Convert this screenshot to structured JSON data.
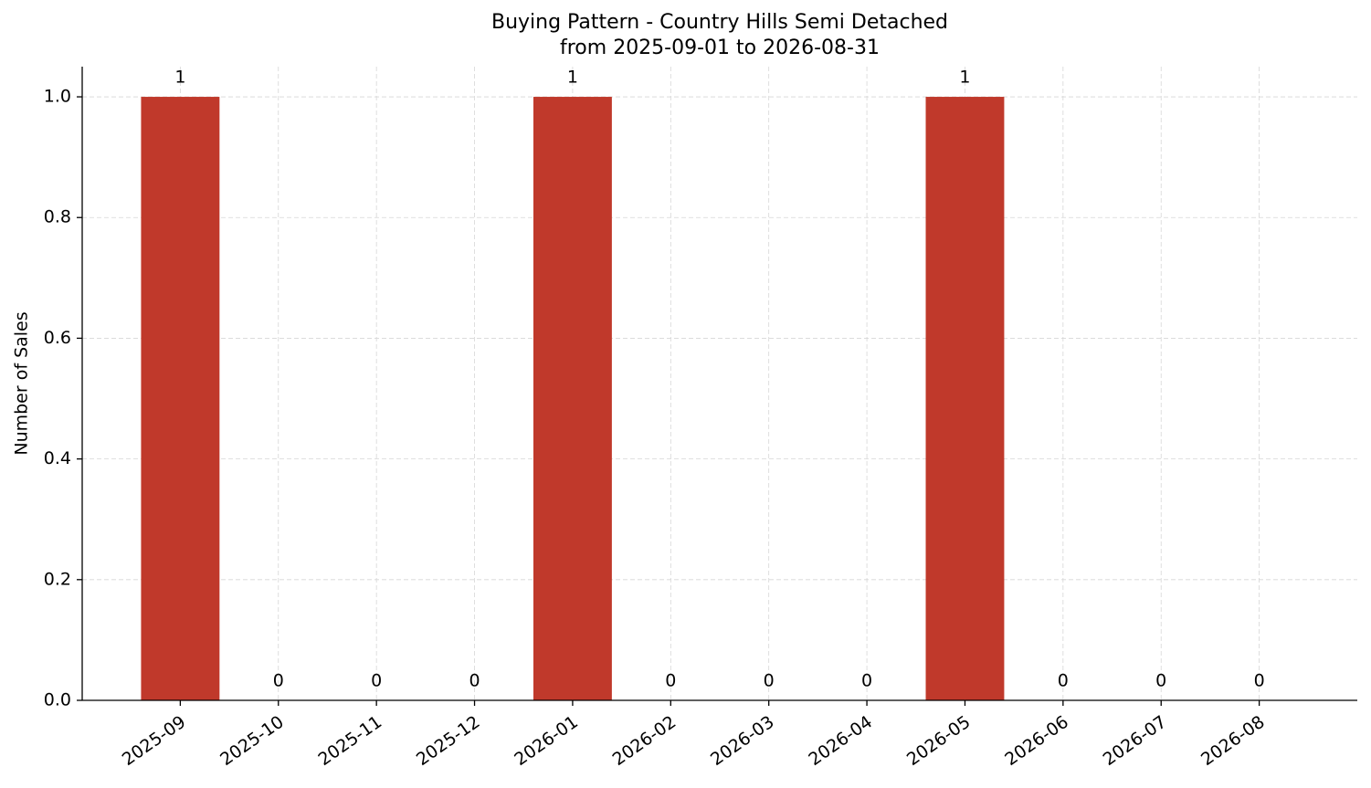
{
  "chart_data": {
    "type": "bar",
    "title": "Buying Pattern - Country Hills Semi Detached",
    "subtitle": "from 2025-09-01 to 2026-08-31",
    "y_label": "Number of Sales",
    "categories": [
      "2025-09",
      "2025-10",
      "2025-11",
      "2025-12",
      "2026-01",
      "2026-02",
      "2026-03",
      "2026-04",
      "2026-05",
      "2026-06",
      "2026-07",
      "2026-08"
    ],
    "values": [
      1,
      0,
      0,
      0,
      1,
      0,
      0,
      0,
      1,
      0,
      0,
      0
    ],
    "color": "#c0392b",
    "ylim": [
      0,
      1.05
    ],
    "yticks": [
      {
        "value": 0,
        "label": "0.0"
      },
      {
        "value": 0.2,
        "label": "0.2"
      },
      {
        "value": 0.4,
        "label": "0.4"
      },
      {
        "value": 0.6,
        "label": "0.6"
      },
      {
        "value": 0.8,
        "label": "0.8"
      },
      {
        "value": 1,
        "label": "1.0"
      }
    ],
    "grid": true
  }
}
